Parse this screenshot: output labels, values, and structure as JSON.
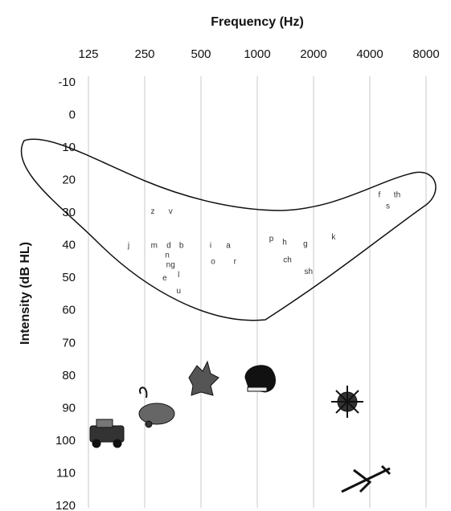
{
  "chart_data": {
    "type": "audiogram",
    "title": "Frequency (Hz)",
    "y_label": "Intensity (dB HL)",
    "log_x": true,
    "grid": true,
    "xlim": [
      125,
      8000
    ],
    "xticks": [
      125,
      250,
      500,
      1000,
      2000,
      4000,
      8000
    ],
    "ylim": [
      -10,
      120
    ],
    "yticks": [
      -10,
      0,
      10,
      20,
      30,
      40,
      50,
      60,
      70,
      80,
      90,
      100,
      110,
      120
    ],
    "sounds": [
      {
        "label": "z",
        "x": 276,
        "y": 29.5
      },
      {
        "label": "v",
        "x": 344,
        "y": 29.5
      },
      {
        "label": "j",
        "x": 205,
        "y": 40
      },
      {
        "label": "m",
        "x": 281,
        "y": 40
      },
      {
        "label": "d",
        "x": 336,
        "y": 40
      },
      {
        "label": "b",
        "x": 393,
        "y": 40
      },
      {
        "label": "n",
        "x": 330,
        "y": 43
      },
      {
        "label": "ng",
        "x": 344,
        "y": 46
      },
      {
        "label": "e",
        "x": 320,
        "y": 50
      },
      {
        "label": "l",
        "x": 380,
        "y": 49
      },
      {
        "label": "u",
        "x": 380,
        "y": 54
      },
      {
        "label": "i",
        "x": 563,
        "y": 40
      },
      {
        "label": "a",
        "x": 700,
        "y": 40
      },
      {
        "label": "o",
        "x": 580,
        "y": 45
      },
      {
        "label": "r",
        "x": 760,
        "y": 45
      },
      {
        "label": "p",
        "x": 1190,
        "y": 38
      },
      {
        "label": "h",
        "x": 1400,
        "y": 39
      },
      {
        "label": "g",
        "x": 1810,
        "y": 39.5
      },
      {
        "label": "ch",
        "x": 1450,
        "y": 44.5
      },
      {
        "label": "sh",
        "x": 1880,
        "y": 48
      },
      {
        "label": "k",
        "x": 2560,
        "y": 37.5
      },
      {
        "label": "f",
        "x": 4500,
        "y": 24.5
      },
      {
        "label": "th",
        "x": 5600,
        "y": 24.5
      },
      {
        "label": "s",
        "x": 5000,
        "y": 28
      }
    ]
  }
}
